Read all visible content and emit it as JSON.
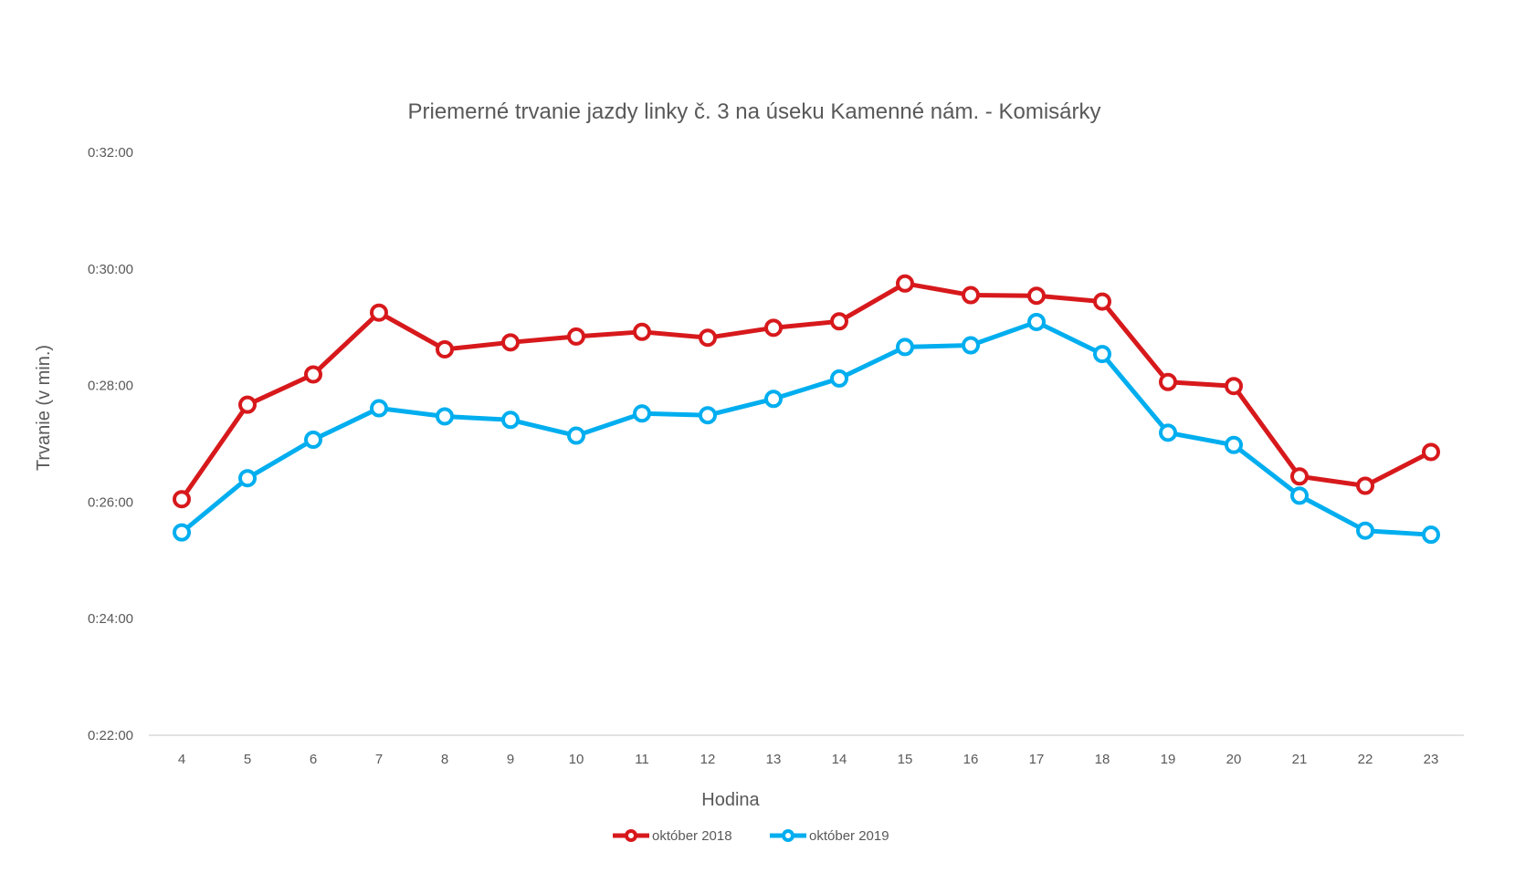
{
  "chart_data": {
    "type": "line",
    "title": "Priemerné trvanie jazdy linky č. 3 na úseku Kamenné nám. - Komisárky",
    "xlabel": "Hodina",
    "ylabel": "Trvanie (v min.)",
    "categories": [
      "4",
      "5",
      "6",
      "7",
      "8",
      "9",
      "10",
      "11",
      "12",
      "13",
      "14",
      "15",
      "16",
      "17",
      "18",
      "19",
      "20",
      "21",
      "22",
      "23"
    ],
    "y_ticks": [
      "0:22:00",
      "0:24:00",
      "0:26:00",
      "0:28:00",
      "0:30:00",
      "0:32:00"
    ],
    "ylim_minutes": [
      22,
      32
    ],
    "y_unit": "minutes",
    "grid": false,
    "legend_position": "bottom",
    "series": [
      {
        "name": "október 2018",
        "color": "#d7191c",
        "values": [
          26.05,
          27.67,
          28.19,
          29.25,
          28.62,
          28.74,
          28.84,
          28.92,
          28.82,
          28.99,
          29.1,
          29.75,
          29.55,
          29.54,
          29.44,
          28.06,
          27.99,
          26.44,
          26.28,
          26.86
        ]
      },
      {
        "name": "október 2019",
        "color": "#00aeef",
        "values": [
          25.48,
          26.41,
          27.07,
          27.61,
          27.47,
          27.41,
          27.14,
          27.52,
          27.49,
          27.77,
          28.12,
          28.66,
          28.69,
          29.09,
          28.54,
          27.19,
          26.98,
          26.11,
          25.51,
          25.44
        ]
      }
    ]
  }
}
